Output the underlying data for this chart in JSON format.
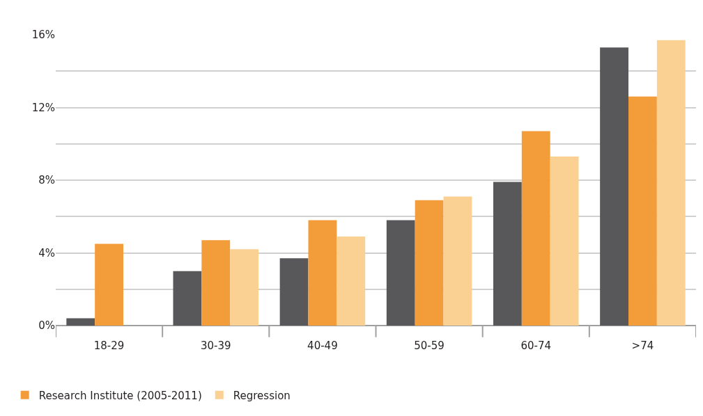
{
  "chart_data": {
    "type": "bar",
    "categories": [
      "18-29",
      "30-39",
      "40-49",
      "50-59",
      "60-74",
      ">74"
    ],
    "series": [
      {
        "color": "#58585a",
        "values": [
          0.4,
          3.0,
          3.7,
          5.8,
          7.9,
          15.3
        ]
      },
      {
        "name": "Research Institute (2005-2011)",
        "color": "#f39c3a",
        "values": [
          4.5,
          4.7,
          5.8,
          6.9,
          10.7,
          12.6
        ]
      },
      {
        "name": "Regression",
        "color": "#fbd093",
        "values": [
          null,
          4.2,
          4.9,
          7.1,
          9.3,
          15.7
        ]
      }
    ],
    "ylim": [
      0,
      16
    ],
    "yticks": [
      {
        "value": 0,
        "label": "0%"
      },
      {
        "value": 2,
        "label": null
      },
      {
        "value": 4,
        "label": "4%"
      },
      {
        "value": 6,
        "label": null
      },
      {
        "value": 8,
        "label": "8%"
      },
      {
        "value": 10,
        "label": null
      },
      {
        "value": 12,
        "label": "12%"
      },
      {
        "value": 14,
        "label": null
      },
      {
        "value": 16,
        "label": "16%"
      }
    ],
    "grid": true,
    "legend": "bottom left"
  }
}
